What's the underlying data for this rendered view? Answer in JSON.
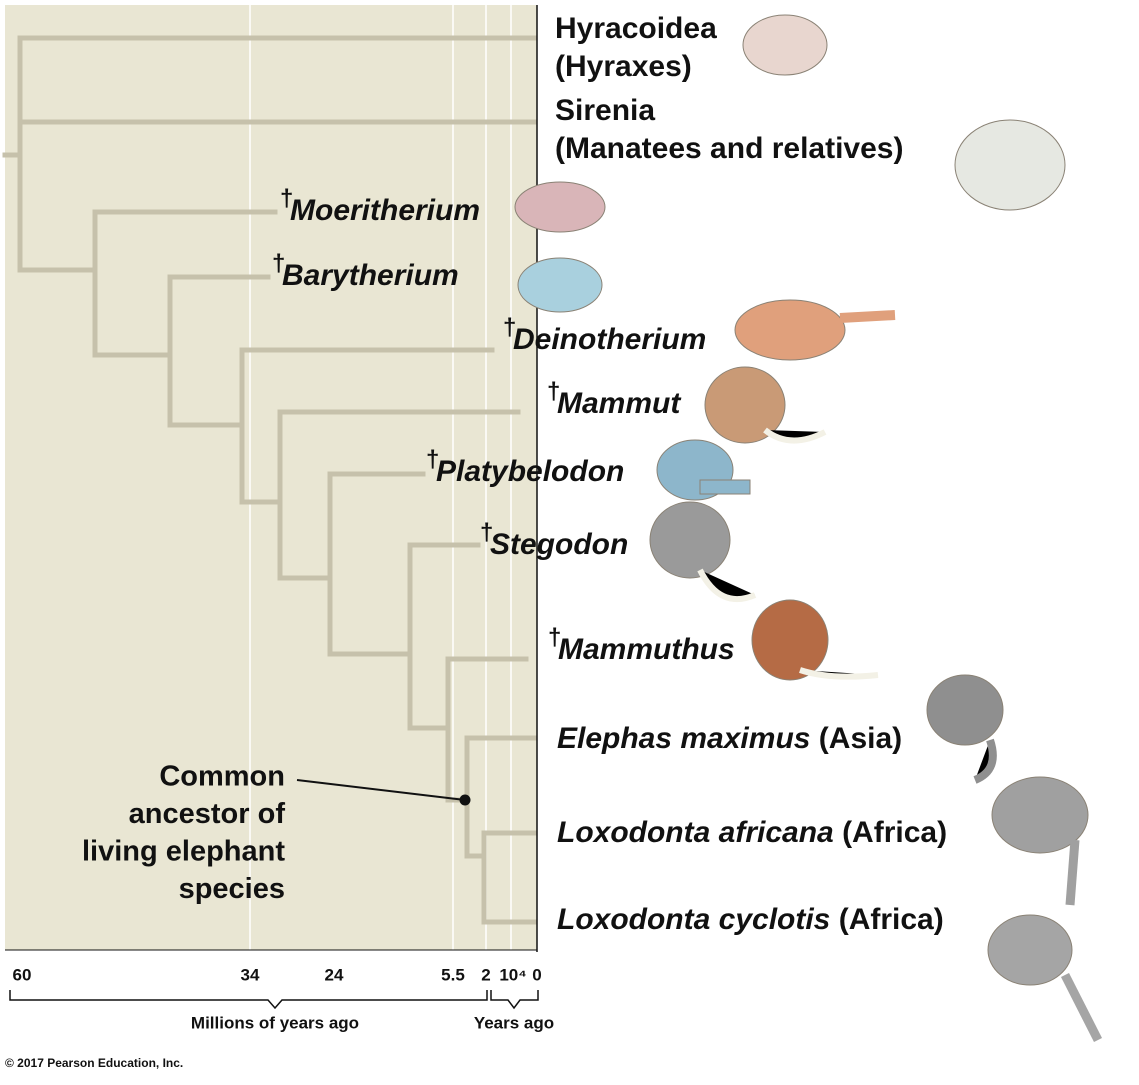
{
  "taxa": [
    {
      "name": "Hyracoidea",
      "note": "(Hyraxes)"
    },
    {
      "name": "Sirenia",
      "note": "(Manatees and relatives)"
    },
    {
      "name": "Moeritherium"
    },
    {
      "name": "Barytherium"
    },
    {
      "name": "Deinotherium"
    },
    {
      "name": "Mammut"
    },
    {
      "name": "Platybelodon"
    },
    {
      "name": "Stegodon"
    },
    {
      "name": "Mammuthus"
    },
    {
      "name": "Elephas maximus",
      "region": "(Asia)"
    },
    {
      "name": "Loxodonta africana",
      "region": "(Africa)"
    },
    {
      "name": "Loxodonta cyclotis",
      "region": "(Africa)"
    }
  ],
  "extinct_marker": "†",
  "annotation": {
    "lines": [
      "Common",
      "ancestor of",
      "living elephant",
      "species"
    ]
  },
  "axis": {
    "ticks": [
      "60",
      "34",
      "24",
      "5.5",
      "2",
      "10⁴",
      "0"
    ],
    "left_label": "Millions of years ago",
    "right_label": "Years ago"
  },
  "copyright": "© 2017 Pearson Education, Inc."
}
